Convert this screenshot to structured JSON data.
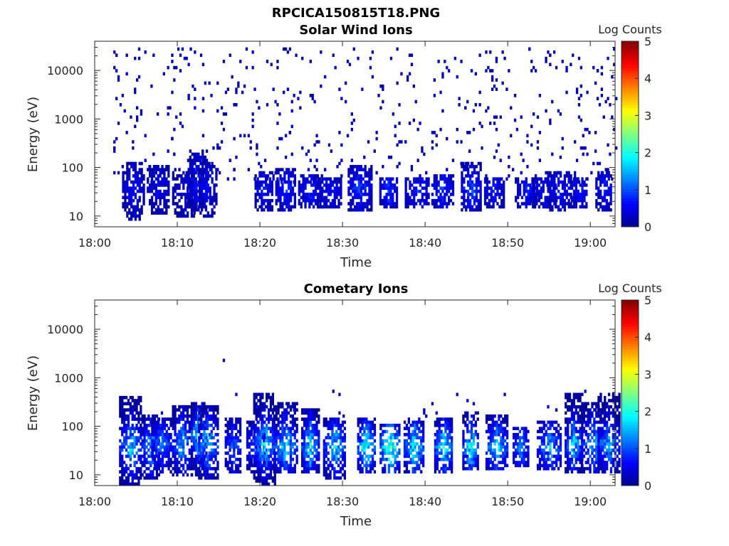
{
  "figure": {
    "title": "RPCICA150815T18.PNG"
  },
  "colormap": [
    "#00008f",
    "#0000ff",
    "#0080ff",
    "#00ffff",
    "#80ff80",
    "#ffff00",
    "#ff8000",
    "#ff0000",
    "#800000"
  ],
  "chart_data": [
    {
      "type": "heatmap",
      "title": "Solar Wind Ions",
      "xlabel": "Time",
      "ylabel": "Energy (eV)",
      "x_ticks": [
        "18:00",
        "18:10",
        "18:20",
        "18:30",
        "18:40",
        "18:50",
        "19:00"
      ],
      "x_tick_minutes": [
        0,
        10,
        20,
        30,
        40,
        50,
        60
      ],
      "xlim_minutes": [
        0,
        63
      ],
      "y_scale": "log",
      "y_ticks": [
        "10",
        "100",
        "1000",
        "10000"
      ],
      "y_tick_values": [
        10,
        100,
        1000,
        10000
      ],
      "ylim": [
        6,
        40000
      ],
      "colorbar": {
        "label": "Log Counts",
        "ticks": [
          "0",
          "1",
          "2",
          "3",
          "4",
          "5"
        ],
        "range": [
          0,
          5
        ]
      },
      "bands": [
        {
          "t": 4.6,
          "lo": 8,
          "hi": 130,
          "peak": 0.7,
          "ef": 35
        },
        {
          "t": 7.6,
          "lo": 10,
          "hi": 110,
          "peak": 0.6,
          "ef": 38
        },
        {
          "t": 10.8,
          "lo": 9,
          "hi": 90,
          "peak": 0.5,
          "ef": 30
        },
        {
          "t": 12.4,
          "lo": 10,
          "hi": 230,
          "peak": 0.9,
          "ef": 50
        },
        {
          "t": 13.6,
          "lo": 9,
          "hi": 120,
          "peak": 0.7,
          "ef": 35
        },
        {
          "t": 20.4,
          "lo": 12,
          "hi": 80,
          "peak": 0.8,
          "ef": 35
        },
        {
          "t": 23.1,
          "lo": 12,
          "hi": 90,
          "peak": 0.9,
          "ef": 35
        },
        {
          "t": 26.0,
          "lo": 13,
          "hi": 70,
          "peak": 0.8,
          "ef": 30
        },
        {
          "t": 28.4,
          "lo": 14,
          "hi": 60,
          "peak": 0.7,
          "ef": 30
        },
        {
          "t": 32.0,
          "lo": 12,
          "hi": 100,
          "peak": 1.0,
          "ef": 35
        },
        {
          "t": 35.5,
          "lo": 14,
          "hi": 60,
          "peak": 1.0,
          "ef": 32
        },
        {
          "t": 39.0,
          "lo": 13,
          "hi": 60,
          "peak": 0.9,
          "ef": 32
        },
        {
          "t": 42.0,
          "lo": 13,
          "hi": 70,
          "peak": 0.9,
          "ef": 32
        },
        {
          "t": 45.5,
          "lo": 12,
          "hi": 130,
          "peak": 1.1,
          "ef": 35
        },
        {
          "t": 48.3,
          "lo": 14,
          "hi": 60,
          "peak": 0.8,
          "ef": 32
        },
        {
          "t": 52.2,
          "lo": 14,
          "hi": 60,
          "peak": 0.8,
          "ef": 32
        },
        {
          "t": 54.3,
          "lo": 14,
          "hi": 60,
          "peak": 0.7,
          "ef": 32
        },
        {
          "t": 56.2,
          "lo": 12,
          "hi": 80,
          "peak": 0.8,
          "ef": 35
        },
        {
          "t": 58.6,
          "lo": 14,
          "hi": 60,
          "peak": 0.8,
          "ef": 32
        },
        {
          "t": 61.6,
          "lo": 12,
          "hi": 80,
          "peak": 0.8,
          "ef": 35
        }
      ],
      "scatter": {
        "t_range": [
          2,
          63
        ],
        "e_range": [
          50,
          30000
        ],
        "count": 520,
        "level": 0.25
      }
    },
    {
      "type": "heatmap",
      "title": "Cometary Ions",
      "xlabel": "Time",
      "ylabel": "Energy (eV)",
      "x_ticks": [
        "18:00",
        "18:10",
        "18:20",
        "18:30",
        "18:40",
        "18:50",
        "19:00"
      ],
      "x_tick_minutes": [
        0,
        10,
        20,
        30,
        40,
        50,
        60
      ],
      "xlim_minutes": [
        0,
        63
      ],
      "y_scale": "log",
      "y_ticks": [
        "10",
        "100",
        "1000",
        "10000"
      ],
      "y_tick_values": [
        10,
        100,
        1000,
        10000
      ],
      "ylim": [
        6,
        40000
      ],
      "colorbar": {
        "label": "Log Counts",
        "ticks": [
          "0",
          "1",
          "2",
          "3",
          "4",
          "5"
        ],
        "range": [
          0,
          5
        ]
      },
      "bands": [
        {
          "t": 4.3,
          "lo": 6,
          "hi": 400,
          "peak": 1.8,
          "ef": 35
        },
        {
          "t": 6.7,
          "lo": 7,
          "hi": 170,
          "peak": 1.6,
          "ef": 35
        },
        {
          "t": 8.0,
          "lo": 10,
          "hi": 150,
          "peak": 1.3,
          "ef": 40
        },
        {
          "t": 10.5,
          "lo": 9,
          "hi": 250,
          "peak": 1.6,
          "ef": 40
        },
        {
          "t": 12.6,
          "lo": 9,
          "hi": 300,
          "peak": 2.2,
          "ef": 60
        },
        {
          "t": 13.7,
          "lo": 8,
          "hi": 250,
          "peak": 1.8,
          "ef": 40
        },
        {
          "t": 16.7,
          "lo": 10,
          "hi": 150,
          "peak": 1.2,
          "ef": 35
        },
        {
          "t": 19.6,
          "lo": 10,
          "hi": 120,
          "peak": 1.2,
          "ef": 35
        },
        {
          "t": 20.5,
          "lo": 6,
          "hi": 450,
          "peak": 1.9,
          "ef": 40
        },
        {
          "t": 23.0,
          "lo": 10,
          "hi": 300,
          "peak": 1.9,
          "ef": 35
        },
        {
          "t": 26.0,
          "lo": 10,
          "hi": 230,
          "peak": 2.0,
          "ef": 35
        },
        {
          "t": 29.0,
          "lo": 7,
          "hi": 150,
          "peak": 1.8,
          "ef": 35
        },
        {
          "t": 32.8,
          "lo": 10,
          "hi": 150,
          "peak": 2.2,
          "ef": 35
        },
        {
          "t": 35.7,
          "lo": 10,
          "hi": 100,
          "peak": 2.5,
          "ef": 35
        },
        {
          "t": 38.6,
          "lo": 10,
          "hi": 150,
          "peak": 2.0,
          "ef": 35
        },
        {
          "t": 42.2,
          "lo": 10,
          "hi": 150,
          "peak": 2.0,
          "ef": 35
        },
        {
          "t": 45.4,
          "lo": 11,
          "hi": 200,
          "peak": 2.1,
          "ef": 35
        },
        {
          "t": 48.6,
          "lo": 11,
          "hi": 160,
          "peak": 1.8,
          "ef": 35
        },
        {
          "t": 51.5,
          "lo": 13,
          "hi": 90,
          "peak": 1.4,
          "ef": 35
        },
        {
          "t": 55.0,
          "lo": 12,
          "hi": 120,
          "peak": 1.5,
          "ef": 35
        },
        {
          "t": 57.9,
          "lo": 10,
          "hi": 450,
          "peak": 1.8,
          "ef": 40
        },
        {
          "t": 60.3,
          "lo": 10,
          "hi": 300,
          "peak": 1.6,
          "ef": 40
        },
        {
          "t": 62.2,
          "lo": 10,
          "hi": 450,
          "peak": 1.6,
          "ef": 40
        }
      ],
      "scatter": {
        "t_range": [
          3,
          63
        ],
        "e_range": [
          150,
          600
        ],
        "count": 25,
        "level": 0.35
      },
      "outliers": [
        {
          "t": 15.5,
          "e": 2200,
          "level": 0.2
        },
        {
          "t": 49.5,
          "e": 480,
          "level": 0.2
        }
      ]
    }
  ]
}
